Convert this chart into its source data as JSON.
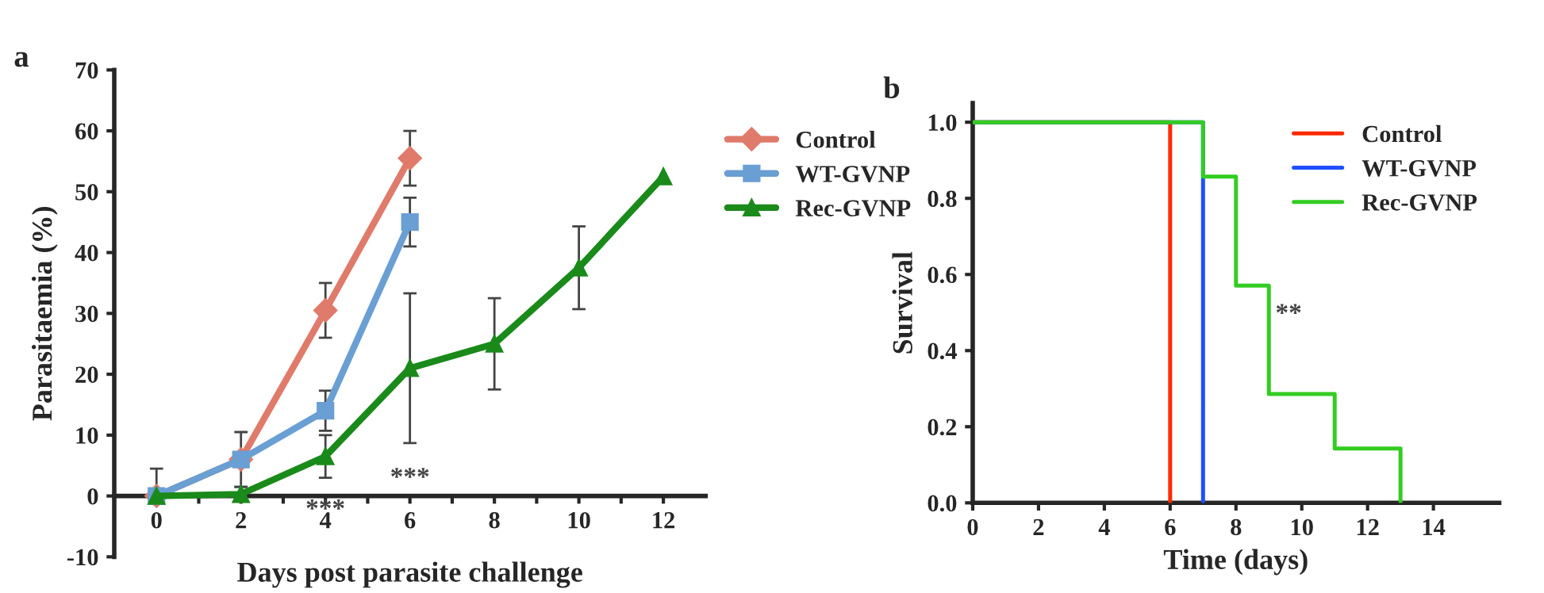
{
  "chart_data": [
    {
      "type": "line",
      "title": "a",
      "xlabel": "Days post parasite challenge",
      "ylabel": "Parasitaemia (%)",
      "x": [
        0,
        2,
        4,
        6,
        8,
        10,
        12
      ],
      "xlim": [
        -1,
        13
      ],
      "xticks": [
        0,
        {
          "value": 1,
          "label": null
        },
        2,
        {
          "value": 3,
          "label": null
        },
        4,
        {
          "value": 5,
          "label": null
        },
        6,
        {
          "value": 7,
          "label": null
        },
        8,
        {
          "value": 9,
          "label": null
        },
        10,
        {
          "value": 11,
          "label": null
        },
        12
      ],
      "ylim": [
        -10,
        70
      ],
      "yticks": [
        -10,
        0,
        10,
        20,
        30,
        40,
        50,
        60,
        70
      ],
      "series": [
        {
          "name": "Control",
          "color": "#e07a6a",
          "marker": "diamond",
          "values": [
            0,
            6,
            30.5,
            55.5,
            null,
            null,
            null
          ],
          "errors": [
            null,
            null,
            4.5,
            4.5,
            null,
            null,
            null
          ]
        },
        {
          "name": "WT-GVNP",
          "color": "#6a9fd4",
          "marker": "square",
          "values": [
            0,
            6,
            14,
            45,
            null,
            null,
            null
          ],
          "errors": [
            [
              0,
              4.5
            ],
            4.5,
            3.3,
            4,
            null,
            null,
            null
          ]
        },
        {
          "name": "Rec-GVNP",
          "color": "#1a8a1a",
          "marker": "triangle",
          "values": [
            0,
            0.3,
            6.5,
            21,
            25,
            37.5,
            52.5
          ],
          "errors": [
            null,
            1.2,
            3.5,
            12.3,
            7.5,
            6.8,
            null
          ]
        }
      ],
      "annotations": [
        "***",
        "***"
      ],
      "legend": "right",
      "grid": false
    },
    {
      "type": "step",
      "title": "b",
      "xlabel": "Time (days)",
      "ylabel": "Survival",
      "xlim": [
        0,
        16
      ],
      "xticks": [
        0,
        2,
        4,
        6,
        8,
        10,
        12,
        14
      ],
      "ylim": [
        0,
        1.05
      ],
      "yticks": [
        {
          "value": 0,
          "label": "0.0"
        },
        0.2,
        0.4,
        0.6,
        0.8,
        {
          "value": 1,
          "label": "1.0"
        }
      ],
      "series": [
        {
          "name": "Control",
          "color": "#ff2a00",
          "x": [
            0,
            6
          ],
          "values": [
            1,
            0
          ]
        },
        {
          "name": "WT-GVNP",
          "color": "#1f4fff",
          "x": [
            0,
            7
          ],
          "values": [
            1,
            0
          ]
        },
        {
          "name": "Rec-GVNP",
          "color": "#33cc22",
          "x": [
            0,
            7,
            8,
            9,
            11,
            13
          ],
          "values": [
            1,
            0.857,
            0.571,
            0.286,
            0.143,
            0
          ]
        }
      ],
      "annotations": [
        "**"
      ],
      "legend": "top right",
      "grid": false
    }
  ]
}
